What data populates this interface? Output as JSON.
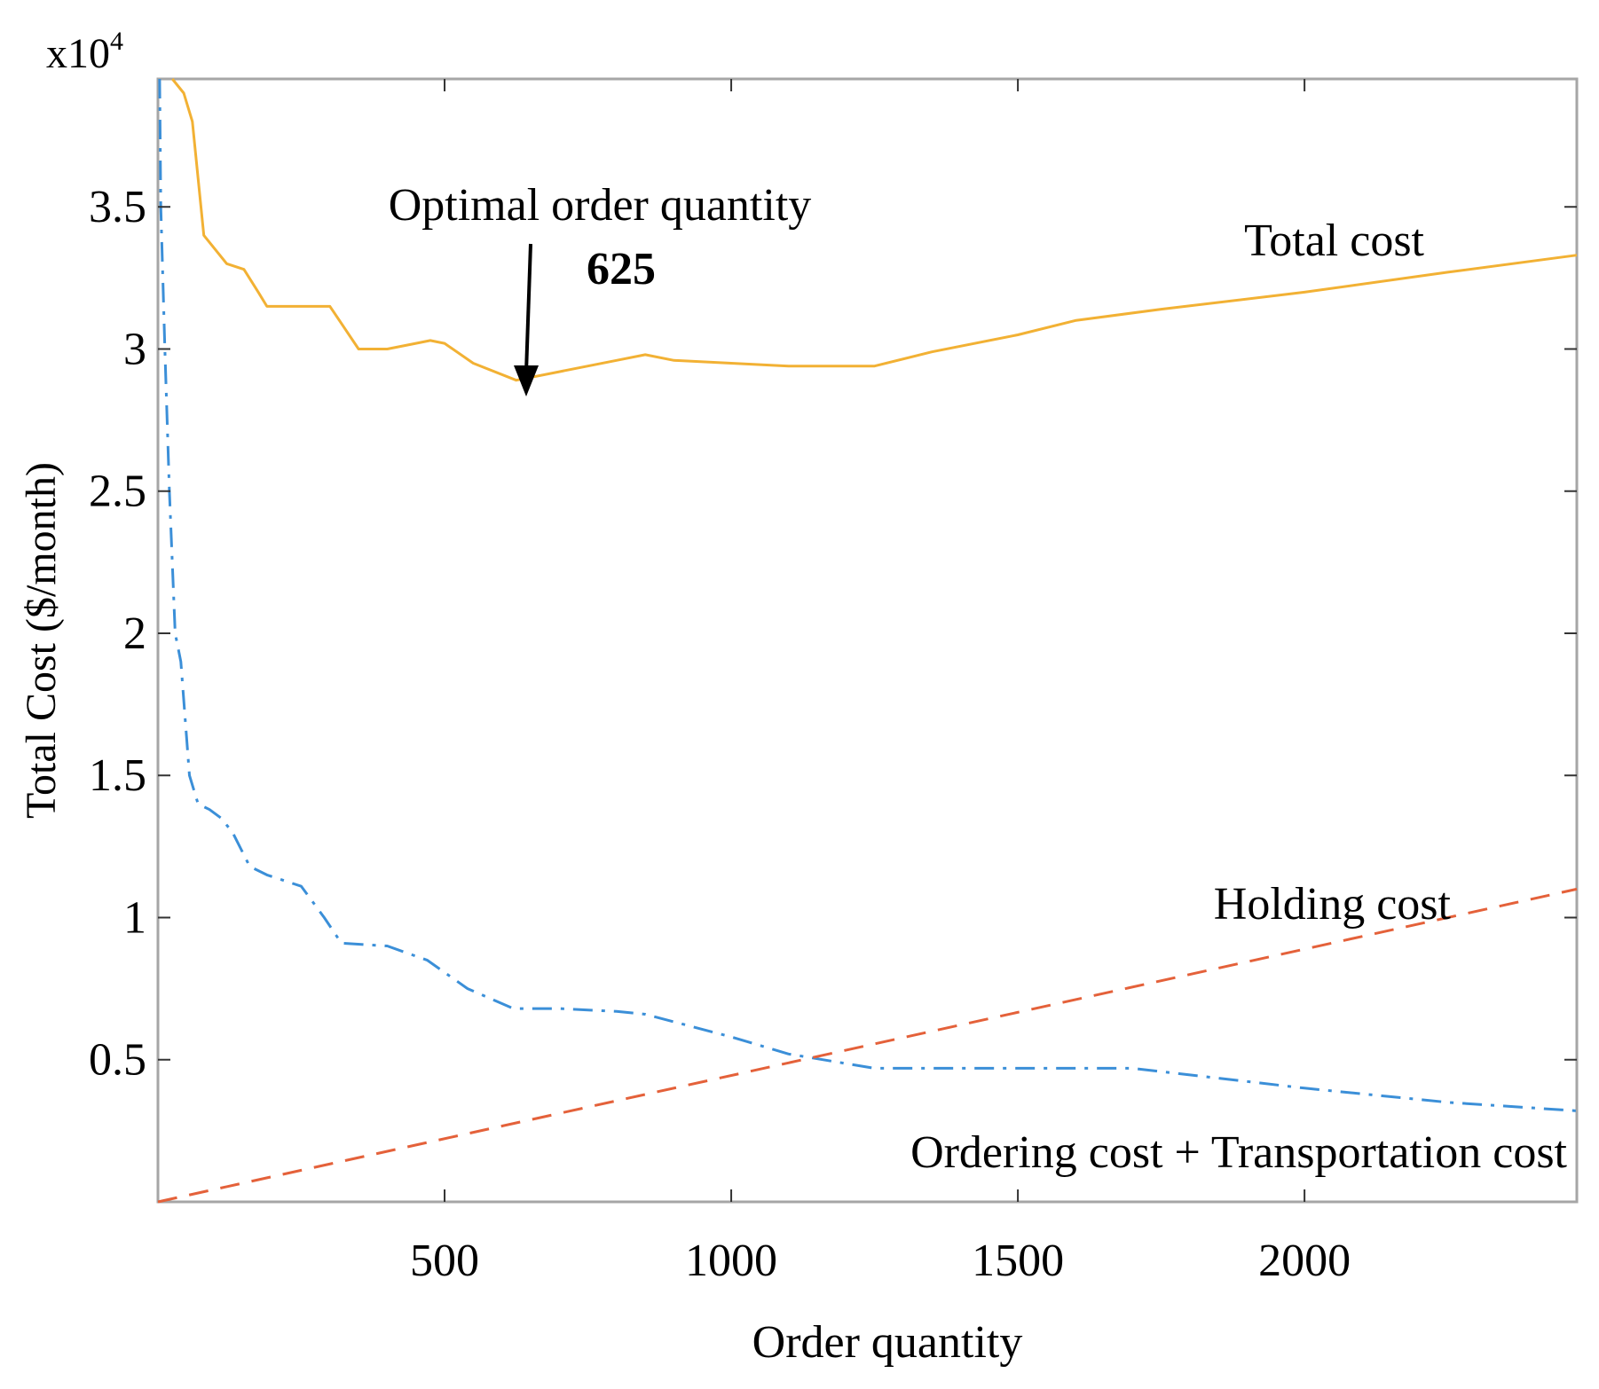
{
  "chart_data": {
    "type": "line",
    "title": "",
    "xlabel": "Order quantity",
    "ylabel": "Total Cost ($/month)",
    "y_exponent_label": {
      "base": "x10",
      "exp": "4"
    },
    "xlim": [
      0,
      2475
    ],
    "ylim": [
      0,
      3.95
    ],
    "x_ticks": [
      500,
      1000,
      1500,
      2000
    ],
    "x_tick_labels": [
      "500",
      "1000",
      "1500",
      "2000"
    ],
    "y_ticks": [
      0.5,
      1,
      1.5,
      2,
      2.5,
      3,
      3.5
    ],
    "y_tick_labels": [
      "0.5",
      "1",
      "1.5",
      "2",
      "2.5",
      "3",
      "3.5"
    ],
    "grid": false,
    "series": [
      {
        "name": "Total cost",
        "color": "#f2b134",
        "style": "solid",
        "x": [
          25,
          45,
          60,
          80,
          100,
          120,
          150,
          175,
          190,
          210,
          250,
          300,
          350,
          400,
          450,
          475,
          500,
          550,
          625,
          700,
          800,
          850,
          900,
          1000,
          1100,
          1250,
          1350,
          1500,
          1600,
          1750,
          2000,
          2250,
          2475
        ],
        "y": [
          3.95,
          3.9,
          3.8,
          3.4,
          3.35,
          3.3,
          3.28,
          3.2,
          3.15,
          3.15,
          3.15,
          3.15,
          3.0,
          3.0,
          3.02,
          3.03,
          3.02,
          2.95,
          2.89,
          2.92,
          2.96,
          2.98,
          2.96,
          2.95,
          2.94,
          2.94,
          2.99,
          3.05,
          3.1,
          3.14,
          3.2,
          3.27,
          3.33
        ]
      },
      {
        "name": "Ordering cost + Transportation cost",
        "color": "#3b8fd8",
        "style": "dashdot",
        "x": [
          3,
          5,
          12,
          20,
          30,
          40,
          55,
          70,
          90,
          110,
          130,
          160,
          190,
          220,
          250,
          290,
          320,
          400,
          470,
          540,
          620,
          700,
          800,
          850,
          1000,
          1100,
          1250,
          1500,
          1700,
          2000,
          2250,
          2475
        ],
        "y": [
          3.95,
          3.5,
          3.0,
          2.5,
          2.0,
          1.9,
          1.5,
          1.4,
          1.38,
          1.35,
          1.3,
          1.18,
          1.15,
          1.13,
          1.11,
          1.0,
          0.91,
          0.9,
          0.85,
          0.75,
          0.68,
          0.68,
          0.67,
          0.66,
          0.58,
          0.52,
          0.47,
          0.47,
          0.47,
          0.4,
          0.35,
          0.32
        ]
      },
      {
        "name": "Holding cost",
        "color": "#e4613a",
        "style": "dashed",
        "x": [
          0,
          2475
        ],
        "y": [
          0,
          1.1
        ]
      }
    ],
    "annotations": [
      {
        "text": "Optimal order quantity",
        "x": 625,
        "y": 2.89
      },
      {
        "text": "625",
        "bold": true
      }
    ],
    "series_labels": [
      "Total cost",
      "Holding cost",
      "Ordering cost + Transportation cost"
    ]
  }
}
